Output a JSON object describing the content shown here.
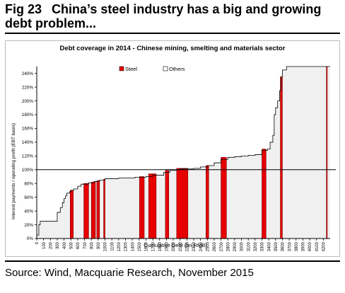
{
  "figure": {
    "number": "Fig 23",
    "title": "China’s steel industry has a big and growing debt problem..."
  },
  "source": "Source: Wind, Macquarie Research, November 2015",
  "colors": {
    "steel": "#e60000",
    "others": "#ffffff",
    "area": "#f0f0f0",
    "steel_outline": "#7a0000"
  },
  "chart_data": {
    "type": "bar",
    "title": "Debt coverage in 2014 - Chinese mining, smelting and materials sector",
    "xlabel": "Cumulative Debt (bn RMB)",
    "ylabel": "Interest payments / operating profit (EBT basis)",
    "xlim": [
      0,
      4300
    ],
    "ylim": [
      0,
      250
    ],
    "x_ticks": [
      0,
      100,
      200,
      300,
      400,
      500,
      600,
      700,
      800,
      900,
      1000,
      1100,
      1200,
      1300,
      1400,
      1500,
      1600,
      1700,
      1800,
      1900,
      2000,
      2100,
      2200,
      2300,
      2400,
      2500,
      2600,
      2700,
      2800,
      2900,
      3000,
      3100,
      3200,
      3300,
      3400,
      3500,
      3600,
      3700,
      3800,
      3900,
      4000,
      4100,
      4200
    ],
    "y_ticks": [
      0,
      20,
      40,
      60,
      80,
      100,
      120,
      140,
      160,
      180,
      200,
      220,
      240
    ],
    "y_tick_labels": [
      "0%",
      "20%",
      "40%",
      "60%",
      "80%",
      "100%",
      "120%",
      "140%",
      "160%",
      "180%",
      "200%",
      "220%",
      "240%"
    ],
    "reference_line": 100,
    "legend": {
      "position": "top-center",
      "items": [
        "Steel",
        "Others"
      ]
    },
    "grid": false,
    "series": [
      {
        "name": "Others",
        "points": [
          [
            0,
            5
          ],
          [
            30,
            20
          ],
          [
            50,
            25
          ],
          [
            300,
            38
          ],
          [
            345,
            45
          ],
          [
            375,
            52
          ],
          [
            400,
            58
          ],
          [
            420,
            62
          ],
          [
            440,
            66
          ],
          [
            480,
            68
          ],
          [
            500,
            70
          ],
          [
            540,
            72
          ],
          [
            600,
            76
          ],
          [
            650,
            79
          ],
          [
            760,
            81
          ],
          [
            840,
            83
          ],
          [
            920,
            85
          ],
          [
            1000,
            87
          ],
          [
            1200,
            88
          ],
          [
            1440,
            89
          ],
          [
            1600,
            90
          ],
          [
            1700,
            92
          ],
          [
            1860,
            96
          ],
          [
            1950,
            99
          ],
          [
            2050,
            100
          ],
          [
            2100,
            101
          ],
          [
            2200,
            101
          ],
          [
            2300,
            102
          ],
          [
            2400,
            104
          ],
          [
            2500,
            106
          ],
          [
            2600,
            110
          ],
          [
            2700,
            115
          ],
          [
            2800,
            118
          ],
          [
            2900,
            119
          ],
          [
            3000,
            120
          ],
          [
            3100,
            121
          ],
          [
            3200,
            122
          ],
          [
            3300,
            128
          ],
          [
            3380,
            130
          ],
          [
            3420,
            140
          ],
          [
            3460,
            150
          ],
          [
            3480,
            180
          ],
          [
            3500,
            190
          ],
          [
            3530,
            200
          ],
          [
            3560,
            215
          ],
          [
            3580,
            235
          ],
          [
            3600,
            245
          ],
          [
            3660,
            250
          ],
          [
            4300,
            250
          ]
        ]
      },
      {
        "name": "Steel",
        "segments": [
          {
            "x": [
              490,
              535
            ],
            "value": 70
          },
          {
            "x": [
              690,
              760
            ],
            "value": 80
          },
          {
            "x": [
              800,
              860
            ],
            "value": 82
          },
          {
            "x": [
              880,
              920
            ],
            "value": 84
          },
          {
            "x": [
              980,
              1000
            ],
            "value": 86
          },
          {
            "x": [
              1505,
              1575
            ],
            "value": 90
          },
          {
            "x": [
              1640,
              1750
            ],
            "value": 94
          },
          {
            "x": [
              1885,
              1935
            ],
            "value": 99
          },
          {
            "x": [
              2050,
              2215
            ],
            "value": 102
          },
          {
            "x": [
              2480,
              2520
            ],
            "value": 106
          },
          {
            "x": [
              2700,
              2780
            ],
            "value": 118
          },
          {
            "x": [
              3300,
              3360
            ],
            "value": 130
          },
          {
            "x": [
              3570,
              3600
            ],
            "value": 235
          },
          {
            "x": [
              4245,
              4255
            ],
            "value": 250
          }
        ]
      }
    ]
  }
}
